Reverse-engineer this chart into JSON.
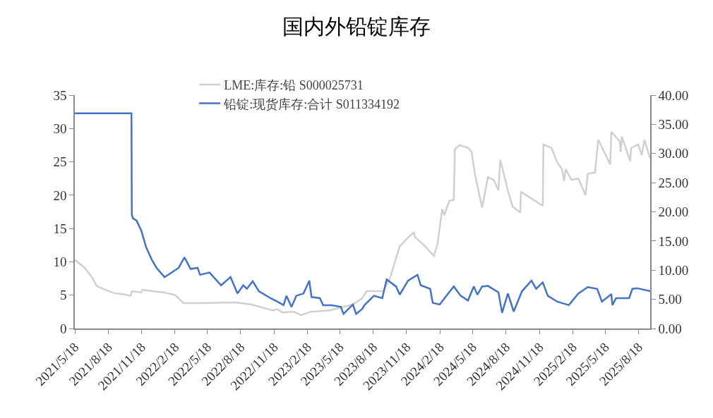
{
  "chart_data": {
    "type": "line",
    "title": "国内外铅锭库存",
    "xlim": [
      "2021-05-18",
      "2025-09-19"
    ],
    "xticks": [
      {
        "value": "2021-05-18",
        "label": "2021/5/18"
      },
      {
        "value": "2021-08-18",
        "label": "2021/8/18"
      },
      {
        "value": "2021-11-18",
        "label": "2021/11/18"
      },
      {
        "value": "2022-02-18",
        "label": "2022/2/18"
      },
      {
        "value": "2022-05-18",
        "label": "2022/5/18"
      },
      {
        "value": "2022-08-18",
        "label": "2022/8/18"
      },
      {
        "value": "2022-11-18",
        "label": "2022/11/18"
      },
      {
        "value": "2023-02-18",
        "label": "2023/2/18"
      },
      {
        "value": "2023-05-18",
        "label": "2023/5/18"
      },
      {
        "value": "2023-08-18",
        "label": "2023/8/18"
      },
      {
        "value": "2023-11-18",
        "label": "2023/11/18"
      },
      {
        "value": "2024-02-18",
        "label": "2024/2/18"
      },
      {
        "value": "2024-05-18",
        "label": "2024/5/18"
      },
      {
        "value": "2024-08-18",
        "label": "2024/8/18"
      },
      {
        "value": "2024-11-18",
        "label": "2024/11/18"
      },
      {
        "value": "2025-02-18",
        "label": "2025/2/18"
      },
      {
        "value": "2025-05-18",
        "label": "2025/5/18"
      },
      {
        "value": "2025-08-18",
        "label": "2025/8/18"
      }
    ],
    "ylim": [
      0,
      35
    ],
    "yticks": [
      0,
      5,
      10,
      15,
      20,
      25,
      30,
      35
    ],
    "y2lim": [
      0,
      40
    ],
    "y2ticks": [
      {
        "value": 0,
        "label": "0.00"
      },
      {
        "value": 5,
        "label": "5.00"
      },
      {
        "value": 10,
        "label": "10.00"
      },
      {
        "value": 15,
        "label": "15.00"
      },
      {
        "value": 20,
        "label": "20.00"
      },
      {
        "value": 25,
        "label": "25.00"
      },
      {
        "value": 30,
        "label": "30.00"
      },
      {
        "value": 35,
        "label": "35.00"
      },
      {
        "value": 40,
        "label": "40.00"
      }
    ],
    "grid": false,
    "legend": "top",
    "marker": "none",
    "line_style": "solid",
    "series": [
      {
        "name": "LME:库存:铅 S000025731",
        "color": "#d0d0d0",
        "x": [
          "2021-05-18",
          "2021-06-14",
          "2021-07-04",
          "2021-07-17",
          "2021-08-05",
          "2021-09-03",
          "2021-10-02",
          "2021-10-18",
          "2021-10-23",
          "2021-11-17",
          "2021-11-20",
          "2022-01-20",
          "2022-02-19",
          "2022-03-13",
          "2022-04-28",
          "2022-08-03",
          "2022-09-17",
          "2022-11-14",
          "2022-11-27",
          "2022-12-10",
          "2023-01-12",
          "2023-01-31",
          "2023-02-26",
          "2023-04-19",
          "2023-06-23",
          "2023-07-18",
          "2023-07-31",
          "2023-09-15",
          "2023-10-04",
          "2023-10-30",
          "2023-11-19",
          "2023-12-08",
          "2023-12-11",
          "2024-01-03",
          "2024-02-01",
          "2024-02-11",
          "2024-02-24",
          "2024-03-01",
          "2024-03-14",
          "2024-03-27",
          "2024-03-30",
          "2024-04-12",
          "2024-05-05",
          "2024-05-15",
          "2024-05-24",
          "2024-06-13",
          "2024-06-29",
          "2024-07-15",
          "2024-07-28",
          "2024-08-02",
          "2024-08-23",
          "2024-09-05",
          "2024-09-26",
          "2024-09-28",
          "2024-10-27",
          "2024-11-27",
          "2024-11-29",
          "2024-12-21",
          "2025-01-06",
          "2025-01-19",
          "2025-01-25",
          "2025-01-29",
          "2025-02-14",
          "2025-03-05",
          "2025-03-25",
          "2025-03-31",
          "2025-04-20",
          "2025-04-29",
          "2025-05-09",
          "2025-06-01",
          "2025-06-04",
          "2025-06-27",
          "2025-06-30",
          "2025-07-03",
          "2025-07-26",
          "2025-07-29",
          "2025-08-17",
          "2025-08-27",
          "2025-09-03",
          "2025-09-19"
        ],
        "values": [
          10.3,
          9.1,
          7.7,
          6.4,
          5.9,
          5.3,
          5.1,
          4.9,
          5.6,
          5.4,
          5.8,
          5.4,
          5.0,
          3.8,
          3.8,
          3.9,
          3.6,
          2.7,
          2.9,
          2.4,
          2.5,
          2.0,
          2.5,
          2.7,
          3.6,
          4.5,
          5.6,
          5.6,
          7.7,
          12.3,
          13.5,
          14.4,
          13.7,
          12.6,
          10.9,
          12.6,
          17.9,
          17.0,
          19.1,
          19.3,
          26.9,
          27.5,
          27.1,
          26.5,
          23.2,
          18.1,
          22.7,
          22.3,
          20.7,
          25.3,
          20.7,
          18.3,
          17.4,
          20.5,
          19.5,
          18.4,
          27.6,
          27.1,
          24.9,
          23.9,
          22.1,
          23.9,
          22.3,
          22.5,
          20.0,
          23.2,
          23.4,
          28.3,
          27.2,
          24.6,
          29.5,
          28.1,
          26.5,
          28.8,
          25.1,
          27.1,
          27.6,
          26.0,
          28.3,
          25.5
        ]
      },
      {
        "name": "铅锭:现货库存:合计 S011334192",
        "color": "#4472c4",
        "axis": "y2",
        "x": [
          "2021-05-18",
          "2021-10-21",
          "2021-10-22",
          "2021-10-25",
          "2021-11-04",
          "2021-11-17",
          "2021-11-30",
          "2021-12-16",
          "2021-12-29",
          "2022-01-20",
          "2022-02-09",
          "2022-02-28",
          "2022-03-16",
          "2022-04-02",
          "2022-04-21",
          "2022-04-28",
          "2022-05-24",
          "2022-06-25",
          "2022-07-21",
          "2022-08-09",
          "2022-08-25",
          "2022-09-04",
          "2022-09-20",
          "2022-10-07",
          "2022-11-08",
          "2022-11-27",
          "2022-12-14",
          "2022-12-22",
          "2023-01-05",
          "2023-01-18",
          "2023-02-07",
          "2023-02-23",
          "2023-03-01",
          "2023-03-24",
          "2023-04-02",
          "2023-04-25",
          "2023-05-21",
          "2023-05-28",
          "2023-06-23",
          "2023-07-02",
          "2023-07-18",
          "2023-07-25",
          "2023-08-20",
          "2023-09-12",
          "2023-09-24",
          "2023-10-20",
          "2023-10-30",
          "2023-11-22",
          "2023-12-18",
          "2023-12-27",
          "2024-01-22",
          "2024-01-29",
          "2024-02-17",
          "2024-03-14",
          "2024-03-27",
          "2024-04-15",
          "2024-05-05",
          "2024-05-21",
          "2024-05-31",
          "2024-06-13",
          "2024-06-29",
          "2024-07-28",
          "2024-08-07",
          "2024-08-23",
          "2024-09-08",
          "2024-10-01",
          "2024-10-27",
          "2024-11-09",
          "2024-11-27",
          "2024-12-11",
          "2025-01-06",
          "2025-02-07",
          "2025-03-05",
          "2025-03-31",
          "2025-04-26",
          "2025-05-09",
          "2025-06-04",
          "2025-06-07",
          "2025-06-17",
          "2025-07-23",
          "2025-08-01",
          "2025-08-14",
          "2025-09-19"
        ],
        "values": [
          36.9,
          36.9,
          19.5,
          18.9,
          18.5,
          16.8,
          14.0,
          11.8,
          10.4,
          8.8,
          9.6,
          10.4,
          12.2,
          10.2,
          10.4,
          9.2,
          9.6,
          7.4,
          8.8,
          6.0,
          7.4,
          6.8,
          8.1,
          6.4,
          5.2,
          4.6,
          4.0,
          5.6,
          3.7,
          5.6,
          6.0,
          8.2,
          5.4,
          5.2,
          4.0,
          4.0,
          3.7,
          2.5,
          4.1,
          2.5,
          3.3,
          4.0,
          5.6,
          5.2,
          8.4,
          7.2,
          5.8,
          8.2,
          9.2,
          7.4,
          6.8,
          4.4,
          4.1,
          6.2,
          7.2,
          5.6,
          4.8,
          7.2,
          5.8,
          7.2,
          7.3,
          6.2,
          2.7,
          6.0,
          2.9,
          6.4,
          8.2,
          6.8,
          7.9,
          5.6,
          4.6,
          4.0,
          6.0,
          7.1,
          6.8,
          4.6,
          5.9,
          4.0,
          5.2,
          5.2,
          6.8,
          6.9,
          6.4
        ]
      }
    ]
  }
}
